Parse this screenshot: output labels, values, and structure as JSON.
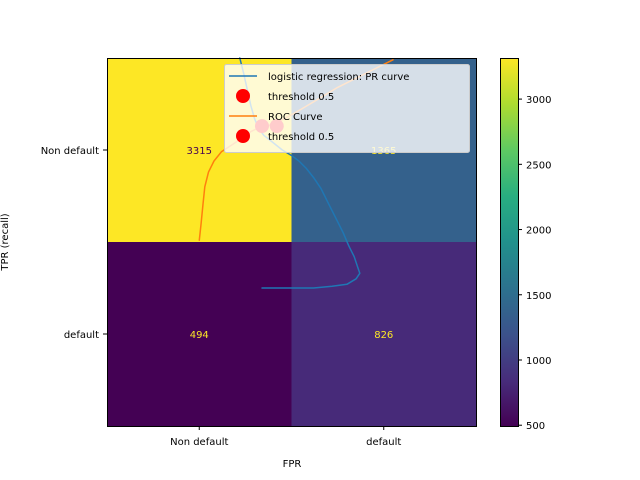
{
  "chart_data": {
    "type": "heatmap",
    "title": "",
    "xlabel": "FPR",
    "ylabel": "TPR (recall)",
    "x_categories": [
      "Non default",
      "default"
    ],
    "y_categories": [
      "Non default",
      "default"
    ],
    "matrix": [
      [
        3315,
        1365
      ],
      [
        494,
        826
      ]
    ],
    "cell_text_colors": [
      [
        "#440154",
        "#fde725"
      ],
      [
        "#fde725",
        "#fde725"
      ]
    ],
    "colorbar": {
      "min": 494,
      "max": 3315,
      "ticks": [
        "500",
        "1000",
        "1500",
        "2000",
        "2500",
        "3000"
      ],
      "tick_values": [
        500,
        1000,
        1500,
        2000,
        2500,
        3000
      ],
      "colormap": "viridis"
    },
    "series": [
      {
        "name": "logistic regression: PR curve",
        "type": "line",
        "color": "#1f77b4",
        "x": [
          0.72,
          0.74,
          0.76,
          0.78,
          0.8,
          0.82,
          0.85,
          0.9,
          0.95,
          1.0,
          1.04,
          1.08,
          1.12,
          1.16,
          1.2,
          1.24,
          1.28,
          1.31,
          1.34,
          1.36,
          1.37,
          1.35,
          1.3,
          1.22,
          1.12,
          1.0,
          0.9,
          0.84
        ],
        "y": [
          0.0,
          0.08,
          0.17,
          0.26,
          0.33,
          0.38,
          0.42,
          0.46,
          0.5,
          0.53,
          0.56,
          0.6,
          0.65,
          0.71,
          0.79,
          0.87,
          0.95,
          1.02,
          1.08,
          1.14,
          1.17,
          1.2,
          1.23,
          1.24,
          1.25,
          1.25,
          1.25,
          1.25
        ]
      },
      {
        "name": "ROC Curve",
        "type": "line",
        "color": "#ff7f0e",
        "x": [
          0.5,
          0.51,
          0.52,
          0.53,
          0.55,
          0.58,
          0.62,
          0.68,
          0.74,
          0.78,
          0.82,
          0.86,
          0.9,
          0.94,
          0.98,
          1.05,
          1.15,
          1.25,
          1.35,
          1.45,
          1.55
        ],
        "y": [
          0.99,
          0.9,
          0.8,
          0.7,
          0.62,
          0.56,
          0.51,
          0.47,
          0.43,
          0.4,
          0.38,
          0.37,
          0.36,
          0.34,
          0.32,
          0.28,
          0.22,
          0.16,
          0.11,
          0.06,
          0.01
        ]
      }
    ],
    "threshold_points": [
      {
        "name": "threshold 0.5",
        "x": 0.84,
        "y": 0.37,
        "color": "#ff0000"
      },
      {
        "name": "threshold 0.5",
        "x": 0.92,
        "y": 0.37,
        "color": "#ff0000"
      }
    ],
    "legend": {
      "placement": "top-right",
      "entries": [
        {
          "label": "logistic regression: PR curve",
          "kind": "line",
          "color": "#1f77b4"
        },
        {
          "label": "threshold 0.5",
          "kind": "marker",
          "color": "#ff0000"
        },
        {
          "label": "ROC Curve",
          "kind": "line",
          "color": "#ff7f0e"
        },
        {
          "label": "threshold 0.5",
          "kind": "marker",
          "color": "#ff0000"
        }
      ]
    },
    "grid": false
  }
}
